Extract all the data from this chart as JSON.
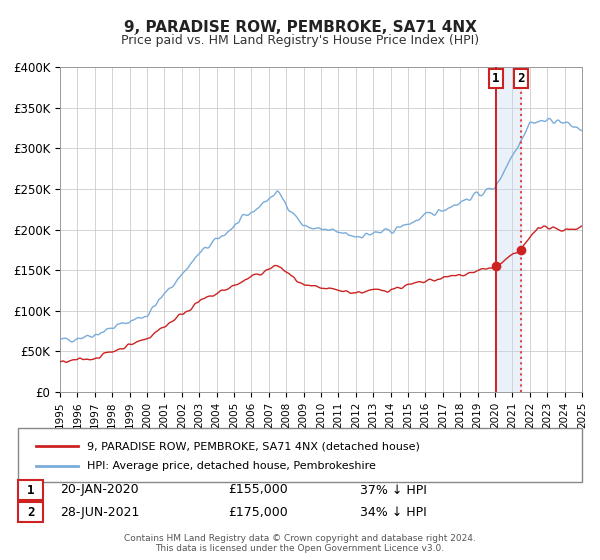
{
  "title": "9, PARADISE ROW, PEMBROKE, SA71 4NX",
  "subtitle": "Price paid vs. HM Land Registry's House Price Index (HPI)",
  "ylim": [
    0,
    400000
  ],
  "yticks": [
    0,
    50000,
    100000,
    150000,
    200000,
    250000,
    300000,
    350000,
    400000
  ],
  "ytick_labels": [
    "£0",
    "£50K",
    "£100K",
    "£150K",
    "£200K",
    "£250K",
    "£300K",
    "£350K",
    "£400K"
  ],
  "sale1_date": 2020.05,
  "sale1_price": 155000,
  "sale1_label": "1",
  "sale2_date": 2021.49,
  "sale2_price": 175000,
  "sale2_label": "2",
  "hpi_color": "#7aacda",
  "property_color": "#cc2222",
  "vline1_color": "#cc0000",
  "vline2_color": "#dd4444",
  "shade_color": "#c8d8f0",
  "legend_property": "9, PARADISE ROW, PEMBROKE, SA71 4NX (detached house)",
  "legend_hpi": "HPI: Average price, detached house, Pembrokeshire",
  "annotation1": "20-JAN-2020",
  "annotation1_price": "£155,000",
  "annotation1_pct": "37% ↓ HPI",
  "annotation2": "28-JUN-2021",
  "annotation2_price": "£175,000",
  "annotation2_pct": "34% ↓ HPI",
  "footer": "Contains HM Land Registry data © Crown copyright and database right 2024.\nThis data is licensed under the Open Government Licence v3.0.",
  "background_color": "#ffffff",
  "grid_color": "#cccccc"
}
